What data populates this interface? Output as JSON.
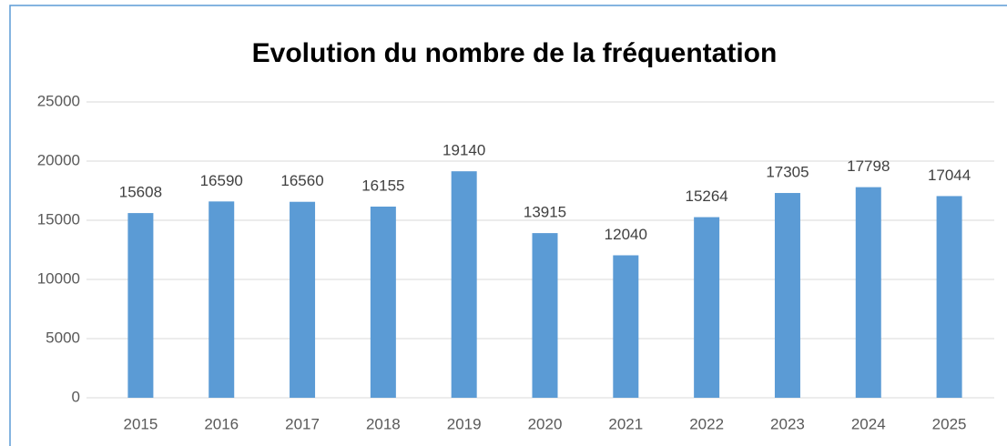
{
  "chart_data": {
    "type": "bar",
    "title": "Evolution du nombre de la fréquentation",
    "categories": [
      "2015",
      "2016",
      "2017",
      "2018",
      "2019",
      "2020",
      "2021",
      "2022",
      "2023",
      "2024",
      "2025"
    ],
    "values": [
      15608,
      16590,
      16560,
      16155,
      19140,
      13915,
      12040,
      15264,
      17305,
      17798,
      17044
    ],
    "color": "#5b9bd5",
    "ylim": [
      0,
      25000
    ],
    "yticks": [
      0,
      5000,
      10000,
      15000,
      20000,
      25000
    ],
    "grid": true
  }
}
